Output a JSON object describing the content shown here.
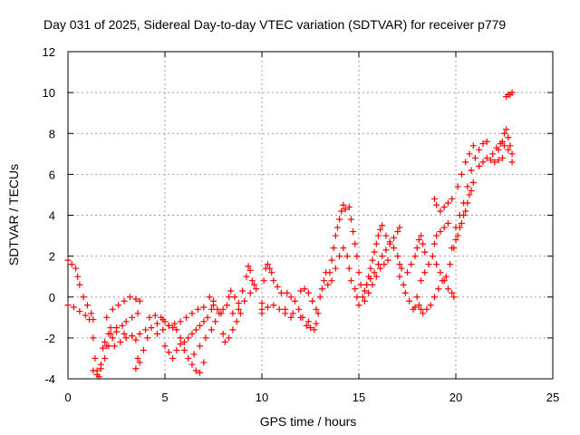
{
  "chart_data": {
    "type": "scatter",
    "title": "Day 031 of 2025, Sidereal Day-to-day VTEC variation (SDTVAR) for receiver p779",
    "xlabel": "GPS time / hours",
    "ylabel": "SDTVAR / TECUs",
    "xlim": [
      0,
      25
    ],
    "ylim": [
      -4,
      12
    ],
    "xticks": [
      0,
      5,
      10,
      15,
      20,
      25
    ],
    "yticks": [
      -4,
      -2,
      0,
      2,
      4,
      6,
      8,
      10,
      12
    ],
    "grid": true,
    "marker": "+",
    "color": "#ff0000",
    "series": [
      {
        "name": "SDTVAR",
        "points": [
          [
            0.0,
            1.8
          ],
          [
            0.2,
            1.6
          ],
          [
            0.4,
            1.4
          ],
          [
            0.5,
            1.0
          ],
          [
            0.6,
            0.6
          ],
          [
            0.8,
            0.0
          ],
          [
            1.0,
            -0.4
          ],
          [
            1.2,
            -0.8
          ],
          [
            1.3,
            -1.1
          ],
          [
            0.0,
            -0.4
          ],
          [
            0.3,
            -0.5
          ],
          [
            0.6,
            -0.7
          ],
          [
            0.9,
            -0.9
          ],
          [
            1.1,
            -1.1
          ],
          [
            1.3,
            -2.0
          ],
          [
            1.4,
            -3.0
          ],
          [
            1.5,
            -3.6
          ],
          [
            1.6,
            -3.9
          ],
          [
            1.7,
            -3.3
          ],
          [
            1.8,
            -2.5
          ],
          [
            1.9,
            -2.2
          ],
          [
            2.0,
            -2.4
          ],
          [
            2.1,
            -1.8
          ],
          [
            2.2,
            -1.5
          ],
          [
            1.3,
            -3.6
          ],
          [
            1.5,
            -3.8
          ],
          [
            1.7,
            -3.5
          ],
          [
            1.9,
            -3.0
          ],
          [
            2.1,
            -2.4
          ],
          [
            2.3,
            -2.0
          ],
          [
            2.0,
            -1.0
          ],
          [
            2.3,
            -0.6
          ],
          [
            2.6,
            -0.4
          ],
          [
            2.9,
            -0.2
          ],
          [
            3.2,
            0.0
          ],
          [
            3.5,
            -0.1
          ],
          [
            3.7,
            -0.2
          ],
          [
            2.2,
            -1.8
          ],
          [
            2.5,
            -1.5
          ],
          [
            2.8,
            -1.4
          ],
          [
            3.0,
            -1.2
          ],
          [
            3.3,
            -1.0
          ],
          [
            3.6,
            -0.8
          ],
          [
            2.4,
            -2.4
          ],
          [
            2.7,
            -2.2
          ],
          [
            3.0,
            -2.0
          ],
          [
            3.3,
            -1.9
          ],
          [
            3.5,
            -2.1
          ],
          [
            3.6,
            -3.0
          ],
          [
            3.5,
            -3.5
          ],
          [
            3.7,
            -3.2
          ],
          [
            3.9,
            -2.6
          ],
          [
            4.1,
            -2.0
          ],
          [
            2.5,
            -1.7
          ],
          [
            2.9,
            -1.8
          ],
          [
            3.3,
            -1.9
          ],
          [
            3.7,
            -1.8
          ],
          [
            4.0,
            -1.6
          ],
          [
            4.3,
            -1.5
          ],
          [
            4.6,
            -1.3
          ],
          [
            4.9,
            -1.1
          ],
          [
            4.2,
            -1.0
          ],
          [
            4.5,
            -0.9
          ],
          [
            4.8,
            -1.0
          ],
          [
            5.0,
            -1.2
          ],
          [
            5.2,
            -1.4
          ],
          [
            5.4,
            -1.5
          ],
          [
            4.6,
            -1.8
          ],
          [
            4.9,
            -1.6
          ],
          [
            5.2,
            -1.4
          ],
          [
            5.5,
            -1.3
          ],
          [
            5.8,
            -1.2
          ],
          [
            6.1,
            -1.0
          ],
          [
            6.4,
            -0.8
          ],
          [
            6.7,
            -0.6
          ],
          [
            7.0,
            -0.5
          ],
          [
            5.0,
            -2.4
          ],
          [
            5.2,
            -2.7
          ],
          [
            5.4,
            -3.0
          ],
          [
            5.6,
            -2.6
          ],
          [
            5.8,
            -2.3
          ],
          [
            6.0,
            -2.6
          ],
          [
            6.2,
            -3.0
          ],
          [
            6.4,
            -3.3
          ],
          [
            6.6,
            -3.6
          ],
          [
            6.8,
            -3.7
          ],
          [
            7.0,
            -3.2
          ],
          [
            5.6,
            -1.6
          ],
          [
            5.8,
            -2.0
          ],
          [
            6.0,
            -2.2
          ],
          [
            6.2,
            -2.0
          ],
          [
            6.4,
            -1.8
          ],
          [
            6.6,
            -1.6
          ],
          [
            6.8,
            -1.4
          ],
          [
            7.0,
            -1.2
          ],
          [
            7.2,
            -1.0
          ],
          [
            7.4,
            -0.6
          ],
          [
            7.5,
            -0.2
          ],
          [
            6.5,
            -2.8
          ],
          [
            6.8,
            -2.4
          ],
          [
            7.1,
            -2.0
          ],
          [
            7.4,
            -1.6
          ],
          [
            7.6,
            -1.2
          ],
          [
            7.8,
            -0.8
          ],
          [
            8.0,
            -0.6
          ],
          [
            7.3,
            0.0
          ],
          [
            7.5,
            -0.4
          ],
          [
            7.7,
            -0.6
          ],
          [
            7.9,
            -0.8
          ],
          [
            8.0,
            -1.8
          ],
          [
            8.1,
            -2.2
          ],
          [
            8.3,
            -2.0
          ],
          [
            8.5,
            -1.6
          ],
          [
            8.7,
            -1.2
          ],
          [
            8.9,
            -0.8
          ],
          [
            8.2,
            -0.4
          ],
          [
            8.3,
            0.0
          ],
          [
            8.4,
            0.3
          ],
          [
            8.6,
            0.0
          ],
          [
            8.8,
            -0.3
          ],
          [
            9.0,
            0.3
          ],
          [
            9.2,
            1.0
          ],
          [
            9.3,
            1.5
          ],
          [
            9.4,
            1.3
          ],
          [
            9.5,
            0.8
          ],
          [
            9.6,
            0.6
          ],
          [
            9.7,
            0.4
          ],
          [
            8.5,
            -0.8
          ],
          [
            8.8,
            -0.6
          ],
          [
            9.1,
            -0.2
          ],
          [
            9.4,
            0.2
          ],
          [
            10.0,
            -0.8
          ],
          [
            10.0,
            -0.3
          ],
          [
            10.1,
            0.8
          ],
          [
            10.2,
            1.4
          ],
          [
            10.3,
            1.6
          ],
          [
            10.4,
            1.4
          ],
          [
            10.5,
            1.2
          ],
          [
            10.6,
            0.8
          ],
          [
            10.8,
            0.5
          ],
          [
            11.0,
            0.2
          ],
          [
            10.0,
            -0.6
          ],
          [
            10.3,
            -0.5
          ],
          [
            10.6,
            -0.4
          ],
          [
            10.9,
            -0.6
          ],
          [
            11.2,
            -0.8
          ],
          [
            11.5,
            -1.0
          ],
          [
            11.3,
            0.2
          ],
          [
            11.5,
            0.0
          ],
          [
            11.7,
            -0.2
          ],
          [
            11.9,
            -0.6
          ],
          [
            12.1,
            -1.0
          ],
          [
            12.3,
            -1.4
          ],
          [
            12.5,
            -1.5
          ],
          [
            12.7,
            -1.6
          ],
          [
            11.2,
            -0.6
          ],
          [
            11.6,
            -0.8
          ],
          [
            12.0,
            -1.0
          ],
          [
            12.4,
            -1.2
          ],
          [
            12.8,
            -1.3
          ],
          [
            12.0,
            0.3
          ],
          [
            12.2,
            0.4
          ],
          [
            12.4,
            0.2
          ],
          [
            12.6,
            -0.2
          ],
          [
            12.8,
            -0.6
          ],
          [
            12.9,
            -0.8
          ],
          [
            13.0,
            0.0
          ],
          [
            13.1,
            0.4
          ],
          [
            13.2,
            0.8
          ],
          [
            13.3,
            1.2
          ],
          [
            13.4,
            0.6
          ],
          [
            13.5,
            1.2
          ],
          [
            13.6,
            1.8
          ],
          [
            13.7,
            2.4
          ],
          [
            13.8,
            3.0
          ],
          [
            13.9,
            3.4
          ],
          [
            14.0,
            3.8
          ],
          [
            14.1,
            4.2
          ],
          [
            14.2,
            4.5
          ],
          [
            14.3,
            4.3
          ],
          [
            13.6,
            0.8
          ],
          [
            13.8,
            1.4
          ],
          [
            14.0,
            2.0
          ],
          [
            14.2,
            2.4
          ],
          [
            14.4,
            2.0
          ],
          [
            14.5,
            1.4
          ],
          [
            14.6,
            0.8
          ],
          [
            14.8,
            0.4
          ],
          [
            14.9,
            0.0
          ],
          [
            14.5,
            4.4
          ],
          [
            14.6,
            3.8
          ],
          [
            14.7,
            3.2
          ],
          [
            14.8,
            2.6
          ],
          [
            14.9,
            2.0
          ],
          [
            15.0,
            1.2
          ],
          [
            15.1,
            0.6
          ],
          [
            15.0,
            -0.4
          ],
          [
            15.2,
            0.0
          ],
          [
            15.3,
            0.3
          ],
          [
            15.4,
            0.6
          ],
          [
            15.5,
            1.0
          ],
          [
            15.6,
            1.4
          ],
          [
            15.7,
            1.8
          ],
          [
            15.8,
            2.2
          ],
          [
            15.9,
            2.6
          ],
          [
            16.0,
            3.0
          ],
          [
            16.1,
            3.3
          ],
          [
            16.2,
            3.5
          ],
          [
            15.3,
            -0.2
          ],
          [
            15.5,
            0.2
          ],
          [
            15.7,
            0.6
          ],
          [
            15.9,
            1.0
          ],
          [
            16.1,
            1.4
          ],
          [
            16.3,
            1.6
          ],
          [
            16.5,
            1.8
          ],
          [
            15.4,
            0.6
          ],
          [
            15.6,
            0.9
          ],
          [
            15.8,
            1.2
          ],
          [
            16.0,
            1.6
          ],
          [
            16.2,
            2.0
          ],
          [
            16.4,
            2.3
          ],
          [
            16.6,
            2.6
          ],
          [
            16.8,
            2.9
          ],
          [
            17.0,
            3.2
          ],
          [
            17.1,
            3.4
          ],
          [
            16.4,
            3.0
          ],
          [
            16.6,
            2.7
          ],
          [
            16.8,
            2.4
          ],
          [
            17.0,
            2.0
          ],
          [
            17.1,
            1.6
          ],
          [
            17.2,
            1.4
          ],
          [
            17.1,
            1.0
          ],
          [
            17.3,
            0.6
          ],
          [
            17.4,
            0.2
          ],
          [
            17.6,
            -0.2
          ],
          [
            17.8,
            -0.6
          ],
          [
            17.9,
            -0.5
          ],
          [
            17.5,
            1.2
          ],
          [
            17.7,
            1.6
          ],
          [
            17.9,
            2.0
          ],
          [
            18.0,
            2.4
          ],
          [
            18.1,
            2.8
          ],
          [
            18.2,
            3.0
          ],
          [
            18.3,
            2.6
          ],
          [
            18.4,
            2.2
          ],
          [
            18.0,
            0.0
          ],
          [
            18.1,
            -0.4
          ],
          [
            18.2,
            -0.6
          ],
          [
            18.3,
            -0.8
          ],
          [
            18.5,
            -0.6
          ],
          [
            18.7,
            -0.4
          ],
          [
            18.9,
            0.0
          ],
          [
            19.1,
            0.4
          ],
          [
            19.3,
            0.8
          ],
          [
            18.2,
            0.8
          ],
          [
            18.4,
            1.2
          ],
          [
            18.6,
            1.6
          ],
          [
            18.8,
            2.0
          ],
          [
            18.9,
            2.6
          ],
          [
            19.0,
            3.0
          ],
          [
            19.2,
            3.2
          ],
          [
            19.4,
            3.4
          ],
          [
            19.6,
            3.6
          ],
          [
            18.9,
            4.8
          ],
          [
            19.0,
            4.5
          ],
          [
            19.2,
            4.2
          ],
          [
            19.4,
            4.4
          ],
          [
            19.6,
            4.6
          ],
          [
            19.8,
            4.8
          ],
          [
            19.0,
            1.6
          ],
          [
            19.2,
            1.2
          ],
          [
            19.4,
            0.8
          ],
          [
            19.6,
            0.4
          ],
          [
            19.8,
            0.2
          ],
          [
            19.9,
            0.0
          ],
          [
            19.5,
            1.0
          ],
          [
            19.7,
            1.6
          ],
          [
            19.9,
            2.4
          ],
          [
            20.1,
            3.0
          ],
          [
            20.3,
            3.6
          ],
          [
            20.5,
            4.2
          ],
          [
            20.7,
            5.0
          ],
          [
            20.9,
            5.6
          ],
          [
            19.8,
            2.4
          ],
          [
            20.0,
            2.8
          ],
          [
            20.2,
            3.4
          ],
          [
            20.4,
            4.0
          ],
          [
            20.6,
            4.6
          ],
          [
            20.8,
            5.2
          ],
          [
            20.0,
            3.4
          ],
          [
            20.2,
            4.0
          ],
          [
            20.4,
            4.6
          ],
          [
            20.6,
            5.4
          ],
          [
            20.8,
            6.2
          ],
          [
            21.0,
            6.8
          ],
          [
            21.2,
            7.2
          ],
          [
            21.4,
            7.5
          ],
          [
            21.6,
            7.6
          ],
          [
            20.1,
            5.4
          ],
          [
            20.3,
            6.0
          ],
          [
            20.5,
            6.6
          ],
          [
            20.7,
            7.0
          ],
          [
            20.9,
            7.4
          ],
          [
            21.2,
            6.4
          ],
          [
            21.4,
            6.6
          ],
          [
            21.6,
            6.8
          ],
          [
            21.8,
            6.7
          ],
          [
            22.0,
            6.6
          ],
          [
            22.2,
            6.7
          ],
          [
            22.4,
            6.8
          ],
          [
            22.2,
            7.2
          ],
          [
            22.4,
            7.6
          ],
          [
            22.5,
            8.0
          ],
          [
            22.6,
            8.2
          ],
          [
            22.7,
            7.8
          ],
          [
            22.8,
            7.4
          ],
          [
            22.9,
            7.0
          ],
          [
            22.9,
            6.6
          ],
          [
            21.9,
            7.0
          ],
          [
            22.1,
            7.3
          ],
          [
            22.3,
            7.5
          ],
          [
            22.5,
            7.4
          ],
          [
            22.7,
            7.2
          ],
          [
            22.6,
            9.8
          ],
          [
            22.7,
            9.9
          ],
          [
            22.8,
            9.9
          ],
          [
            22.9,
            10.0
          ]
        ]
      }
    ]
  }
}
